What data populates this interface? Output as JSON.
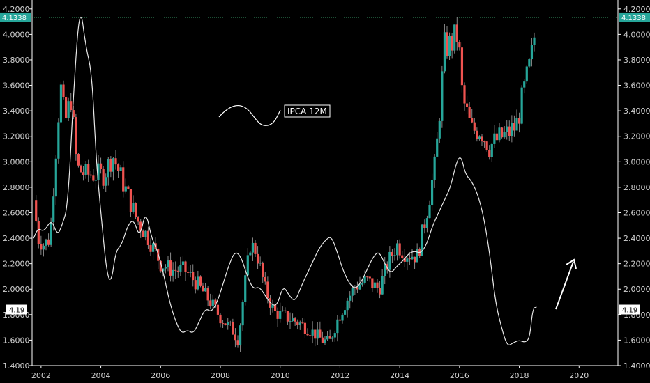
{
  "chart_data": {
    "type": "candlestick",
    "title": "",
    "xlim": [
      2001.7,
      2021.3
    ],
    "ylim": [
      1.4,
      4.27
    ],
    "x_ticks": [
      {
        "v": 2002,
        "label": "2002"
      },
      {
        "v": 2004,
        "label": "2004"
      },
      {
        "v": 2006,
        "label": "2006"
      },
      {
        "v": 2008,
        "label": "2008"
      },
      {
        "v": 2010,
        "label": "2010"
      },
      {
        "v": 2012,
        "label": "2012"
      },
      {
        "v": 2014,
        "label": "2014"
      },
      {
        "v": 2016,
        "label": "2016"
      },
      {
        "v": 2018,
        "label": "2018"
      },
      {
        "v": 2020,
        "label": "2020"
      }
    ],
    "y_ticks": [
      {
        "v": 1.4,
        "label": "1.4000"
      },
      {
        "v": 1.6,
        "label": "1.6000"
      },
      {
        "v": 1.8,
        "label": "1.8000"
      },
      {
        "v": 2.0,
        "label": "2.0000"
      },
      {
        "v": 2.2,
        "label": "2.2000"
      },
      {
        "v": 2.4,
        "label": "2.4000"
      },
      {
        "v": 2.6,
        "label": "2.6000"
      },
      {
        "v": 2.8,
        "label": "2.8000"
      },
      {
        "v": 3.0,
        "label": "3.0000"
      },
      {
        "v": 3.2,
        "label": "3.2000"
      },
      {
        "v": 3.4,
        "label": "3.4000"
      },
      {
        "v": 3.6,
        "label": "3.6000"
      },
      {
        "v": 3.8,
        "label": "3.8000"
      },
      {
        "v": 4.0,
        "label": "4.0000"
      },
      {
        "v": 4.2,
        "label": "4.2000"
      }
    ],
    "last_price": {
      "value": 4.1338,
      "label": "4.1338"
    },
    "ipca_marker": {
      "value": 1.84,
      "label": "4.19"
    },
    "legend": {
      "label": "IPCA 12M"
    },
    "price_anchors": [
      [
        2001.75,
        2.7
      ],
      [
        2001.9,
        2.4
      ],
      [
        2002.1,
        2.35
      ],
      [
        2002.3,
        2.4
      ],
      [
        2002.5,
        3.1
      ],
      [
        2002.65,
        3.6
      ],
      [
        2002.8,
        3.3
      ],
      [
        2003.0,
        3.5
      ],
      [
        2003.2,
        2.95
      ],
      [
        2003.5,
        2.9
      ],
      [
        2003.8,
        2.9
      ],
      [
        2004.1,
        2.9
      ],
      [
        2004.4,
        3.05
      ],
      [
        2004.8,
        2.8
      ],
      [
        2005.2,
        2.55
      ],
      [
        2005.6,
        2.4
      ],
      [
        2006.0,
        2.2
      ],
      [
        2006.4,
        2.15
      ],
      [
        2006.8,
        2.15
      ],
      [
        2007.2,
        2.05
      ],
      [
        2007.6,
        1.92
      ],
      [
        2008.0,
        1.78
      ],
      [
        2008.4,
        1.68
      ],
      [
        2008.6,
        1.6
      ],
      [
        2008.8,
        2.0
      ],
      [
        2009.0,
        2.35
      ],
      [
        2009.2,
        2.3
      ],
      [
        2009.5,
        2.0
      ],
      [
        2009.8,
        1.82
      ],
      [
        2010.2,
        1.78
      ],
      [
        2010.6,
        1.74
      ],
      [
        2011.0,
        1.68
      ],
      [
        2011.4,
        1.6
      ],
      [
        2011.65,
        1.58
      ],
      [
        2011.9,
        1.75
      ],
      [
        2012.2,
        1.9
      ],
      [
        2012.5,
        2.02
      ],
      [
        2012.9,
        2.07
      ],
      [
        2013.3,
        2.0
      ],
      [
        2013.6,
        2.2
      ],
      [
        2013.9,
        2.35
      ],
      [
        2014.2,
        2.28
      ],
      [
        2014.6,
        2.26
      ],
      [
        2014.9,
        2.6
      ],
      [
        2015.2,
        3.0
      ],
      [
        2015.5,
        3.9
      ],
      [
        2015.7,
        3.92
      ],
      [
        2015.95,
        4.0
      ],
      [
        2016.1,
        3.5
      ],
      [
        2016.4,
        3.25
      ],
      [
        2016.7,
        3.25
      ],
      [
        2017.0,
        3.12
      ],
      [
        2017.3,
        3.18
      ],
      [
        2017.6,
        3.22
      ],
      [
        2017.9,
        3.28
      ],
      [
        2018.2,
        3.6
      ],
      [
        2018.4,
        3.8
      ],
      [
        2018.58,
        4.13
      ]
    ],
    "ipca_points": [
      [
        2001.75,
        2.4
      ],
      [
        2001.9,
        2.48
      ],
      [
        2002.1,
        2.45
      ],
      [
        2002.35,
        2.55
      ],
      [
        2002.55,
        2.42
      ],
      [
        2002.7,
        2.5
      ],
      [
        2002.9,
        2.65
      ],
      [
        2003.1,
        3.6
      ],
      [
        2003.3,
        4.25
      ],
      [
        2003.5,
        3.9
      ],
      [
        2003.7,
        3.7
      ],
      [
        2003.85,
        3.0
      ],
      [
        2004.0,
        2.6
      ],
      [
        2004.2,
        2.12
      ],
      [
        2004.35,
        2.05
      ],
      [
        2004.5,
        2.3
      ],
      [
        2004.7,
        2.35
      ],
      [
        2004.9,
        2.5
      ],
      [
        2005.1,
        2.55
      ],
      [
        2005.3,
        2.4
      ],
      [
        2005.5,
        2.62
      ],
      [
        2005.7,
        2.4
      ],
      [
        2005.9,
        2.3
      ],
      [
        2006.1,
        2.12
      ],
      [
        2006.3,
        1.9
      ],
      [
        2006.5,
        1.75
      ],
      [
        2006.7,
        1.65
      ],
      [
        2006.9,
        1.68
      ],
      [
        2007.1,
        1.65
      ],
      [
        2007.3,
        1.75
      ],
      [
        2007.5,
        1.85
      ],
      [
        2007.7,
        1.82
      ],
      [
        2007.9,
        1.9
      ],
      [
        2008.1,
        2.05
      ],
      [
        2008.3,
        2.2
      ],
      [
        2008.5,
        2.3
      ],
      [
        2008.7,
        2.25
      ],
      [
        2008.9,
        2.1
      ],
      [
        2009.1,
        2.0
      ],
      [
        2009.3,
        2.02
      ],
      [
        2009.5,
        1.95
      ],
      [
        2009.7,
        1.88
      ],
      [
        2009.9,
        1.87
      ],
      [
        2010.1,
        2.03
      ],
      [
        2010.3,
        1.95
      ],
      [
        2010.5,
        1.9
      ],
      [
        2010.7,
        2.02
      ],
      [
        2010.9,
        2.12
      ],
      [
        2011.1,
        2.22
      ],
      [
        2011.3,
        2.32
      ],
      [
        2011.5,
        2.38
      ],
      [
        2011.7,
        2.42
      ],
      [
        2011.9,
        2.3
      ],
      [
        2012.1,
        2.15
      ],
      [
        2012.3,
        2.05
      ],
      [
        2012.5,
        2.0
      ],
      [
        2012.7,
        2.05
      ],
      [
        2012.9,
        2.15
      ],
      [
        2013.1,
        2.25
      ],
      [
        2013.3,
        2.3
      ],
      [
        2013.5,
        2.2
      ],
      [
        2013.7,
        2.12
      ],
      [
        2013.9,
        2.18
      ],
      [
        2014.1,
        2.22
      ],
      [
        2014.3,
        2.28
      ],
      [
        2014.5,
        2.3
      ],
      [
        2014.7,
        2.28
      ],
      [
        2014.9,
        2.35
      ],
      [
        2015.1,
        2.5
      ],
      [
        2015.3,
        2.6
      ],
      [
        2015.5,
        2.7
      ],
      [
        2015.7,
        2.8
      ],
      [
        2015.9,
        3.0
      ],
      [
        2016.05,
        3.05
      ],
      [
        2016.2,
        2.9
      ],
      [
        2016.4,
        2.85
      ],
      [
        2016.6,
        2.75
      ],
      [
        2016.8,
        2.58
      ],
      [
        2017.0,
        2.3
      ],
      [
        2017.2,
        1.9
      ],
      [
        2017.4,
        1.7
      ],
      [
        2017.6,
        1.55
      ],
      [
        2017.8,
        1.58
      ],
      [
        2018.0,
        1.6
      ],
      [
        2018.2,
        1.58
      ],
      [
        2018.35,
        1.62
      ],
      [
        2018.45,
        1.85
      ],
      [
        2018.58,
        1.86
      ]
    ]
  },
  "colors": {
    "up": "#26a69a",
    "down": "#ef5350",
    "wick": "#8a8a8a",
    "ipca_line": "#e8e8e8",
    "price_line": "#4cd08a",
    "axis": "#ffffff",
    "background": "#000000"
  }
}
